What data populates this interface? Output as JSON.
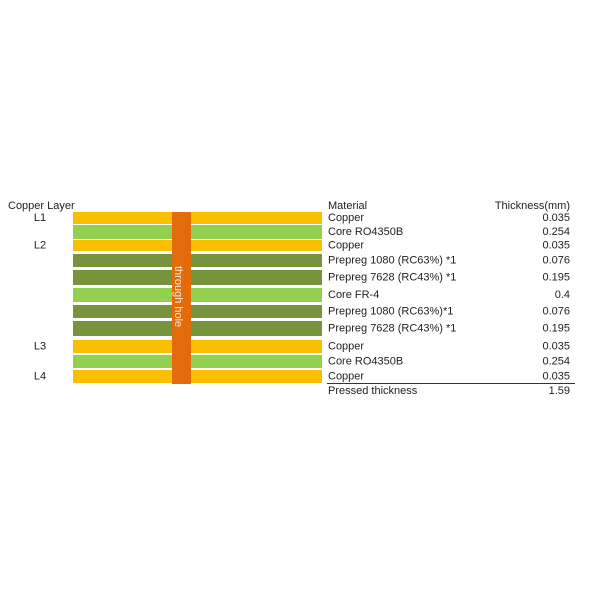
{
  "header": {
    "copper_layer": "Copper Layer",
    "material": "Material",
    "thickness": "Thickness(mm)"
  },
  "through_hole": "through hole",
  "layers": [
    {
      "layer": "L1",
      "material": "Copper",
      "thickness": "0.035"
    },
    {
      "material": "Core RO4350B",
      "thickness": "0.254"
    },
    {
      "layer": "L2",
      "material": "Copper",
      "thickness": "0.035"
    },
    {
      "material": "Prepreg 1080 (RC63%) *1",
      "thickness": "0.076"
    },
    {
      "material": "Prepreg 7628 (RC43%) *1",
      "thickness": "0.195"
    },
    {
      "material": "Core FR-4",
      "thickness": "0.4"
    },
    {
      "material": "Prepreg 1080 (RC63%)*1",
      "thickness": "0.076"
    },
    {
      "material": "Prepreg 7628 (RC43%) *1",
      "thickness": "0.195"
    },
    {
      "layer": "L3",
      "material": "Copper",
      "thickness": "0.035"
    },
    {
      "material": "Core RO4350B",
      "thickness": "0.254"
    },
    {
      "layer": "L4",
      "material": "Copper",
      "thickness": "0.035"
    }
  ],
  "total": {
    "label": "Pressed thickness",
    "thickness": "1.59"
  }
}
